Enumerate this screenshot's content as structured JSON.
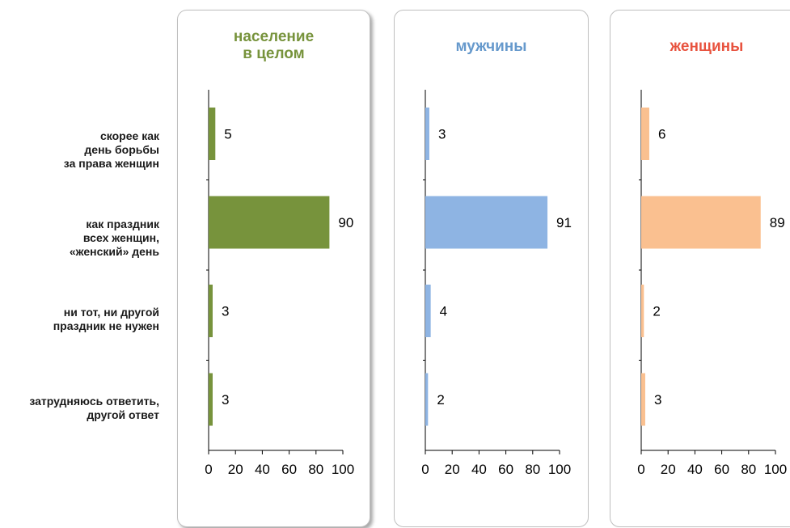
{
  "chart_data": [
    {
      "type": "bar",
      "orientation": "horizontal",
      "title": "население\nв целом",
      "categories": [
        "скорее как\nдень борьбы\nза права женщин",
        "как праздник\nвсех женщин,\n«женский» день",
        "ни тот, ни другой\nпраздник не нужен",
        "затрудняюсь ответить,\nдругой ответ"
      ],
      "values": [
        5,
        90,
        3,
        3
      ],
      "xlim": [
        0,
        100
      ],
      "xticks": [
        "0",
        "20",
        "40",
        "60",
        "80",
        "100"
      ],
      "color": "#77933c",
      "title_color": "#77933c"
    },
    {
      "type": "bar",
      "orientation": "horizontal",
      "title": "мужчины",
      "categories": [
        "скорее как\nдень борьбы\nза права женщин",
        "как праздник\nвсех женщин,\n«женский» день",
        "ни тот, ни другой\nпраздник не нужен",
        "затрудняюсь ответить,\nдругой ответ"
      ],
      "values": [
        3,
        91,
        4,
        2
      ],
      "xlim": [
        0,
        100
      ],
      "xticks": [
        "0",
        "20",
        "40",
        "60",
        "80",
        "100"
      ],
      "color": "#8eb4e3",
      "title_color": "#6699cc"
    },
    {
      "type": "bar",
      "orientation": "horizontal",
      "title": "женщины",
      "categories": [
        "скорее как\nдень борьбы\nза права женщин",
        "как праздник\nвсех женщин,\n«женский» день",
        "ни тот, ни другой\nпраздник не нужен",
        "затрудняюсь ответить,\nдругой ответ"
      ],
      "values": [
        6,
        89,
        2,
        3
      ],
      "xlim": [
        0,
        100
      ],
      "xticks": [
        "0",
        "20",
        "40",
        "60",
        "80",
        "100"
      ],
      "color": "#fac090",
      "title_color": "#e8533f"
    }
  ]
}
